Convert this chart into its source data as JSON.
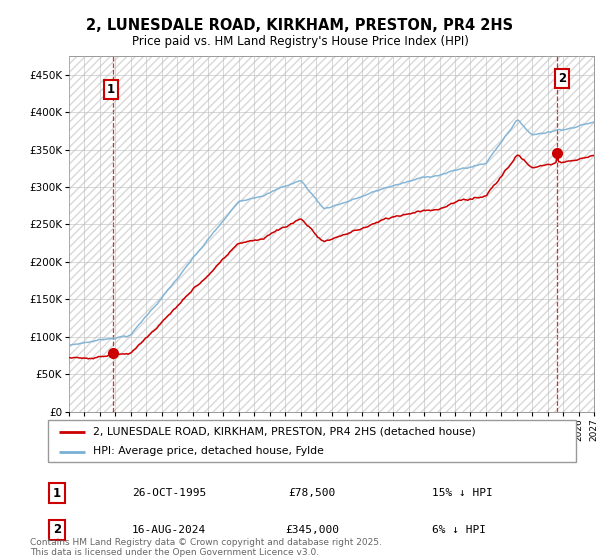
{
  "title": "2, LUNESDALE ROAD, KIRKHAM, PRESTON, PR4 2HS",
  "subtitle": "Price paid vs. HM Land Registry's House Price Index (HPI)",
  "legend_property": "2, LUNESDALE ROAD, KIRKHAM, PRESTON, PR4 2HS (detached house)",
  "legend_hpi": "HPI: Average price, detached house, Fylde",
  "table_rows": [
    {
      "num": "1",
      "date": "26-OCT-1995",
      "price": "£78,500",
      "hpi": "15% ↓ HPI"
    },
    {
      "num": "2",
      "date": "16-AUG-2024",
      "price": "£345,000",
      "hpi": "6% ↓ HPI"
    }
  ],
  "footnote": "Contains HM Land Registry data © Crown copyright and database right 2025.\nThis data is licensed under the Open Government Licence v3.0.",
  "t1_x": 1995.83,
  "t1_y": 78500,
  "t2_x": 2024.62,
  "t2_y": 345000,
  "ylim": [
    0,
    475000
  ],
  "yticks": [
    0,
    50000,
    100000,
    150000,
    200000,
    250000,
    300000,
    350000,
    400000,
    450000
  ],
  "ytick_labels": [
    "£0",
    "£50K",
    "£100K",
    "£150K",
    "£200K",
    "£250K",
    "£300K",
    "£350K",
    "£400K",
    "£450K"
  ],
  "xlim_min": 1993,
  "xlim_max": 2027,
  "property_color": "#cc0000",
  "hpi_color": "#7ab0d4",
  "annotation_box_color": "#cc0000",
  "background_color": "#ffffff",
  "grid_color": "#bbbbbb",
  "hatch_color": "#d8d8d8"
}
